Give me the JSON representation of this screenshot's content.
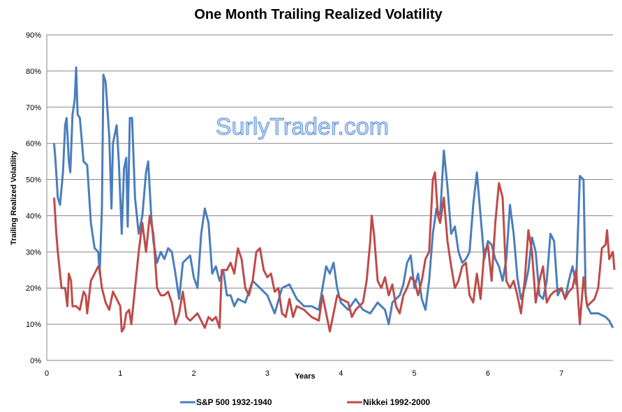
{
  "chart_data": {
    "type": "line",
    "title": "One Month Trailing Realized Volatility",
    "xlabel": "Years",
    "ylabel": "Trailing Realized Volatility",
    "xlim": [
      0,
      7.7
    ],
    "ylim": [
      0,
      90
    ],
    "x_ticks": [
      "0",
      "1",
      "2",
      "3",
      "4",
      "5",
      "6",
      "7"
    ],
    "y_ticks": [
      "0%",
      "10%",
      "20%",
      "30%",
      "40%",
      "50%",
      "60%",
      "70%",
      "80%",
      "90%"
    ],
    "grid": "horizontal",
    "legend": "bottom",
    "watermark": "SurlyTrader.com",
    "series": [
      {
        "name": "S&P 500 1932-1940",
        "color": "#4a7ebb",
        "points": [
          [
            0.1,
            60
          ],
          [
            0.12,
            55
          ],
          [
            0.15,
            45
          ],
          [
            0.18,
            43
          ],
          [
            0.22,
            52
          ],
          [
            0.25,
            65
          ],
          [
            0.27,
            67
          ],
          [
            0.3,
            55
          ],
          [
            0.32,
            52
          ],
          [
            0.35,
            68
          ],
          [
            0.38,
            72
          ],
          [
            0.4,
            81
          ],
          [
            0.42,
            68
          ],
          [
            0.45,
            67
          ],
          [
            0.5,
            55
          ],
          [
            0.55,
            54
          ],
          [
            0.6,
            38
          ],
          [
            0.65,
            31
          ],
          [
            0.7,
            30
          ],
          [
            0.72,
            24
          ],
          [
            0.75,
            42
          ],
          [
            0.77,
            79
          ],
          [
            0.8,
            77
          ],
          [
            0.85,
            62
          ],
          [
            0.88,
            42
          ],
          [
            0.9,
            60
          ],
          [
            0.95,
            65
          ],
          [
            0.98,
            55
          ],
          [
            1.0,
            45
          ],
          [
            1.02,
            35
          ],
          [
            1.05,
            53
          ],
          [
            1.08,
            56
          ],
          [
            1.1,
            37
          ],
          [
            1.13,
            67
          ],
          [
            1.16,
            67
          ],
          [
            1.2,
            45
          ],
          [
            1.25,
            35
          ],
          [
            1.3,
            40
          ],
          [
            1.35,
            52
          ],
          [
            1.38,
            55
          ],
          [
            1.42,
            40
          ],
          [
            1.45,
            33
          ],
          [
            1.5,
            27
          ],
          [
            1.55,
            30
          ],
          [
            1.6,
            28
          ],
          [
            1.65,
            31
          ],
          [
            1.7,
            30
          ],
          [
            1.75,
            24
          ],
          [
            1.8,
            17
          ],
          [
            1.85,
            27
          ],
          [
            1.9,
            28
          ],
          [
            1.95,
            29
          ],
          [
            2.0,
            23
          ],
          [
            2.05,
            20
          ],
          [
            2.1,
            35
          ],
          [
            2.15,
            42
          ],
          [
            2.2,
            38
          ],
          [
            2.25,
            24
          ],
          [
            2.3,
            26
          ],
          [
            2.35,
            22
          ],
          [
            2.4,
            25
          ],
          [
            2.45,
            18
          ],
          [
            2.5,
            18
          ],
          [
            2.55,
            15
          ],
          [
            2.6,
            17
          ],
          [
            2.7,
            16
          ],
          [
            2.8,
            22
          ],
          [
            2.9,
            20
          ],
          [
            3.0,
            18
          ],
          [
            3.1,
            13
          ],
          [
            3.2,
            20
          ],
          [
            3.3,
            21
          ],
          [
            3.4,
            17
          ],
          [
            3.5,
            15
          ],
          [
            3.6,
            15
          ],
          [
            3.7,
            14
          ],
          [
            3.8,
            26
          ],
          [
            3.85,
            24
          ],
          [
            3.9,
            27
          ],
          [
            3.95,
            20
          ],
          [
            4.0,
            16
          ],
          [
            4.1,
            14
          ],
          [
            4.2,
            17
          ],
          [
            4.3,
            14
          ],
          [
            4.4,
            13
          ],
          [
            4.5,
            16
          ],
          [
            4.6,
            14
          ],
          [
            4.65,
            10
          ],
          [
            4.7,
            16
          ],
          [
            4.8,
            18
          ],
          [
            4.85,
            21
          ],
          [
            4.9,
            27
          ],
          [
            4.95,
            29
          ],
          [
            5.0,
            20
          ],
          [
            5.05,
            24
          ],
          [
            5.1,
            17
          ],
          [
            5.15,
            14
          ],
          [
            5.2,
            22
          ],
          [
            5.25,
            35
          ],
          [
            5.3,
            42
          ],
          [
            5.35,
            40
          ],
          [
            5.4,
            58
          ],
          [
            5.45,
            48
          ],
          [
            5.5,
            35
          ],
          [
            5.55,
            37
          ],
          [
            5.6,
            30
          ],
          [
            5.65,
            27
          ],
          [
            5.7,
            28
          ],
          [
            5.75,
            30
          ],
          [
            5.8,
            43
          ],
          [
            5.85,
            52
          ],
          [
            5.9,
            40
          ],
          [
            5.95,
            28
          ],
          [
            6.0,
            33
          ],
          [
            6.05,
            32
          ],
          [
            6.1,
            28
          ],
          [
            6.15,
            26
          ],
          [
            6.2,
            22
          ],
          [
            6.25,
            28
          ],
          [
            6.3,
            43
          ],
          [
            6.35,
            35
          ],
          [
            6.4,
            23
          ],
          [
            6.45,
            17
          ],
          [
            6.5,
            20
          ],
          [
            6.55,
            25
          ],
          [
            6.6,
            34
          ],
          [
            6.65,
            30
          ],
          [
            6.7,
            18
          ],
          [
            6.75,
            17
          ],
          [
            6.8,
            22
          ],
          [
            6.85,
            35
          ],
          [
            6.9,
            33
          ],
          [
            6.95,
            18
          ],
          [
            7.0,
            20
          ],
          [
            7.05,
            17
          ],
          [
            7.1,
            22
          ],
          [
            7.15,
            26
          ],
          [
            7.2,
            21
          ],
          [
            7.25,
            51
          ],
          [
            7.3,
            50
          ],
          [
            7.33,
            18
          ],
          [
            7.35,
            15
          ],
          [
            7.4,
            13
          ],
          [
            7.5,
            13
          ],
          [
            7.6,
            12
          ],
          [
            7.65,
            11
          ],
          [
            7.7,
            9
          ]
        ]
      },
      {
        "name": "Nikkei 1992-2000",
        "color": "#be4b48",
        "points": [
          [
            0.1,
            45
          ],
          [
            0.13,
            35
          ],
          [
            0.15,
            30
          ],
          [
            0.2,
            20
          ],
          [
            0.25,
            20
          ],
          [
            0.28,
            15
          ],
          [
            0.3,
            24
          ],
          [
            0.33,
            22
          ],
          [
            0.35,
            15
          ],
          [
            0.4,
            15
          ],
          [
            0.45,
            14
          ],
          [
            0.5,
            19
          ],
          [
            0.53,
            18
          ],
          [
            0.55,
            13
          ],
          [
            0.6,
            22
          ],
          [
            0.65,
            24
          ],
          [
            0.7,
            26
          ],
          [
            0.72,
            25
          ],
          [
            0.75,
            20
          ],
          [
            0.8,
            16
          ],
          [
            0.85,
            14
          ],
          [
            0.9,
            19
          ],
          [
            0.95,
            17
          ],
          [
            1.0,
            15
          ],
          [
            1.02,
            8
          ],
          [
            1.05,
            9
          ],
          [
            1.08,
            13
          ],
          [
            1.12,
            14
          ],
          [
            1.15,
            10
          ],
          [
            1.2,
            20
          ],
          [
            1.25,
            30
          ],
          [
            1.3,
            38
          ],
          [
            1.35,
            30
          ],
          [
            1.4,
            40
          ],
          [
            1.45,
            35
          ],
          [
            1.5,
            20
          ],
          [
            1.55,
            18
          ],
          [
            1.6,
            18
          ],
          [
            1.65,
            19
          ],
          [
            1.7,
            16
          ],
          [
            1.75,
            10
          ],
          [
            1.8,
            13
          ],
          [
            1.85,
            19
          ],
          [
            1.9,
            12
          ],
          [
            1.95,
            11
          ],
          [
            2.0,
            12
          ],
          [
            2.05,
            13
          ],
          [
            2.1,
            11
          ],
          [
            2.15,
            9
          ],
          [
            2.2,
            12
          ],
          [
            2.25,
            11
          ],
          [
            2.3,
            12
          ],
          [
            2.35,
            9
          ],
          [
            2.38,
            25
          ],
          [
            2.45,
            25
          ],
          [
            2.5,
            27
          ],
          [
            2.55,
            24
          ],
          [
            2.6,
            31
          ],
          [
            2.65,
            28
          ],
          [
            2.7,
            20
          ],
          [
            2.75,
            18
          ],
          [
            2.8,
            22
          ],
          [
            2.85,
            30
          ],
          [
            2.9,
            31
          ],
          [
            2.95,
            25
          ],
          [
            3.0,
            23
          ],
          [
            3.05,
            24
          ],
          [
            3.1,
            19
          ],
          [
            3.15,
            20
          ],
          [
            3.2,
            13
          ],
          [
            3.25,
            12
          ],
          [
            3.3,
            17
          ],
          [
            3.35,
            12
          ],
          [
            3.4,
            15
          ],
          [
            3.5,
            14
          ],
          [
            3.6,
            12
          ],
          [
            3.7,
            11
          ],
          [
            3.75,
            18
          ],
          [
            3.8,
            13
          ],
          [
            3.85,
            8
          ],
          [
            3.9,
            13
          ],
          [
            3.95,
            18
          ],
          [
            4.0,
            17
          ],
          [
            4.1,
            16
          ],
          [
            4.15,
            12
          ],
          [
            4.2,
            14
          ],
          [
            4.3,
            16
          ],
          [
            4.35,
            22
          ],
          [
            4.4,
            33
          ],
          [
            4.42,
            40
          ],
          [
            4.45,
            35
          ],
          [
            4.5,
            22
          ],
          [
            4.55,
            20
          ],
          [
            4.6,
            23
          ],
          [
            4.65,
            18
          ],
          [
            4.7,
            21
          ],
          [
            4.75,
            15
          ],
          [
            4.8,
            13
          ],
          [
            4.85,
            18
          ],
          [
            4.9,
            20
          ],
          [
            4.95,
            23
          ],
          [
            5.0,
            22
          ],
          [
            5.05,
            18
          ],
          [
            5.1,
            22
          ],
          [
            5.15,
            28
          ],
          [
            5.2,
            30
          ],
          [
            5.25,
            50
          ],
          [
            5.28,
            52
          ],
          [
            5.32,
            40
          ],
          [
            5.35,
            38
          ],
          [
            5.4,
            45
          ],
          [
            5.45,
            33
          ],
          [
            5.5,
            26
          ],
          [
            5.55,
            20
          ],
          [
            5.6,
            22
          ],
          [
            5.65,
            26
          ],
          [
            5.7,
            27
          ],
          [
            5.75,
            18
          ],
          [
            5.8,
            16
          ],
          [
            5.85,
            24
          ],
          [
            5.9,
            17
          ],
          [
            5.95,
            30
          ],
          [
            6.0,
            32
          ],
          [
            6.05,
            22
          ],
          [
            6.1,
            38
          ],
          [
            6.15,
            49
          ],
          [
            6.2,
            45
          ],
          [
            6.25,
            22
          ],
          [
            6.3,
            20
          ],
          [
            6.35,
            22
          ],
          [
            6.4,
            18
          ],
          [
            6.45,
            13
          ],
          [
            6.5,
            22
          ],
          [
            6.55,
            36
          ],
          [
            6.6,
            30
          ],
          [
            6.65,
            16
          ],
          [
            6.7,
            22
          ],
          [
            6.75,
            26
          ],
          [
            6.8,
            16
          ],
          [
            6.85,
            18
          ],
          [
            6.9,
            19
          ],
          [
            7.0,
            20
          ],
          [
            7.05,
            17
          ],
          [
            7.1,
            19
          ],
          [
            7.15,
            20
          ],
          [
            7.2,
            25
          ],
          [
            7.25,
            10
          ],
          [
            7.3,
            23
          ],
          [
            7.35,
            15
          ],
          [
            7.4,
            16
          ],
          [
            7.45,
            17
          ],
          [
            7.5,
            20
          ],
          [
            7.55,
            31
          ],
          [
            7.6,
            32
          ],
          [
            7.62,
            36
          ],
          [
            7.65,
            28
          ],
          [
            7.7,
            30
          ],
          [
            7.72,
            25
          ]
        ]
      }
    ]
  }
}
